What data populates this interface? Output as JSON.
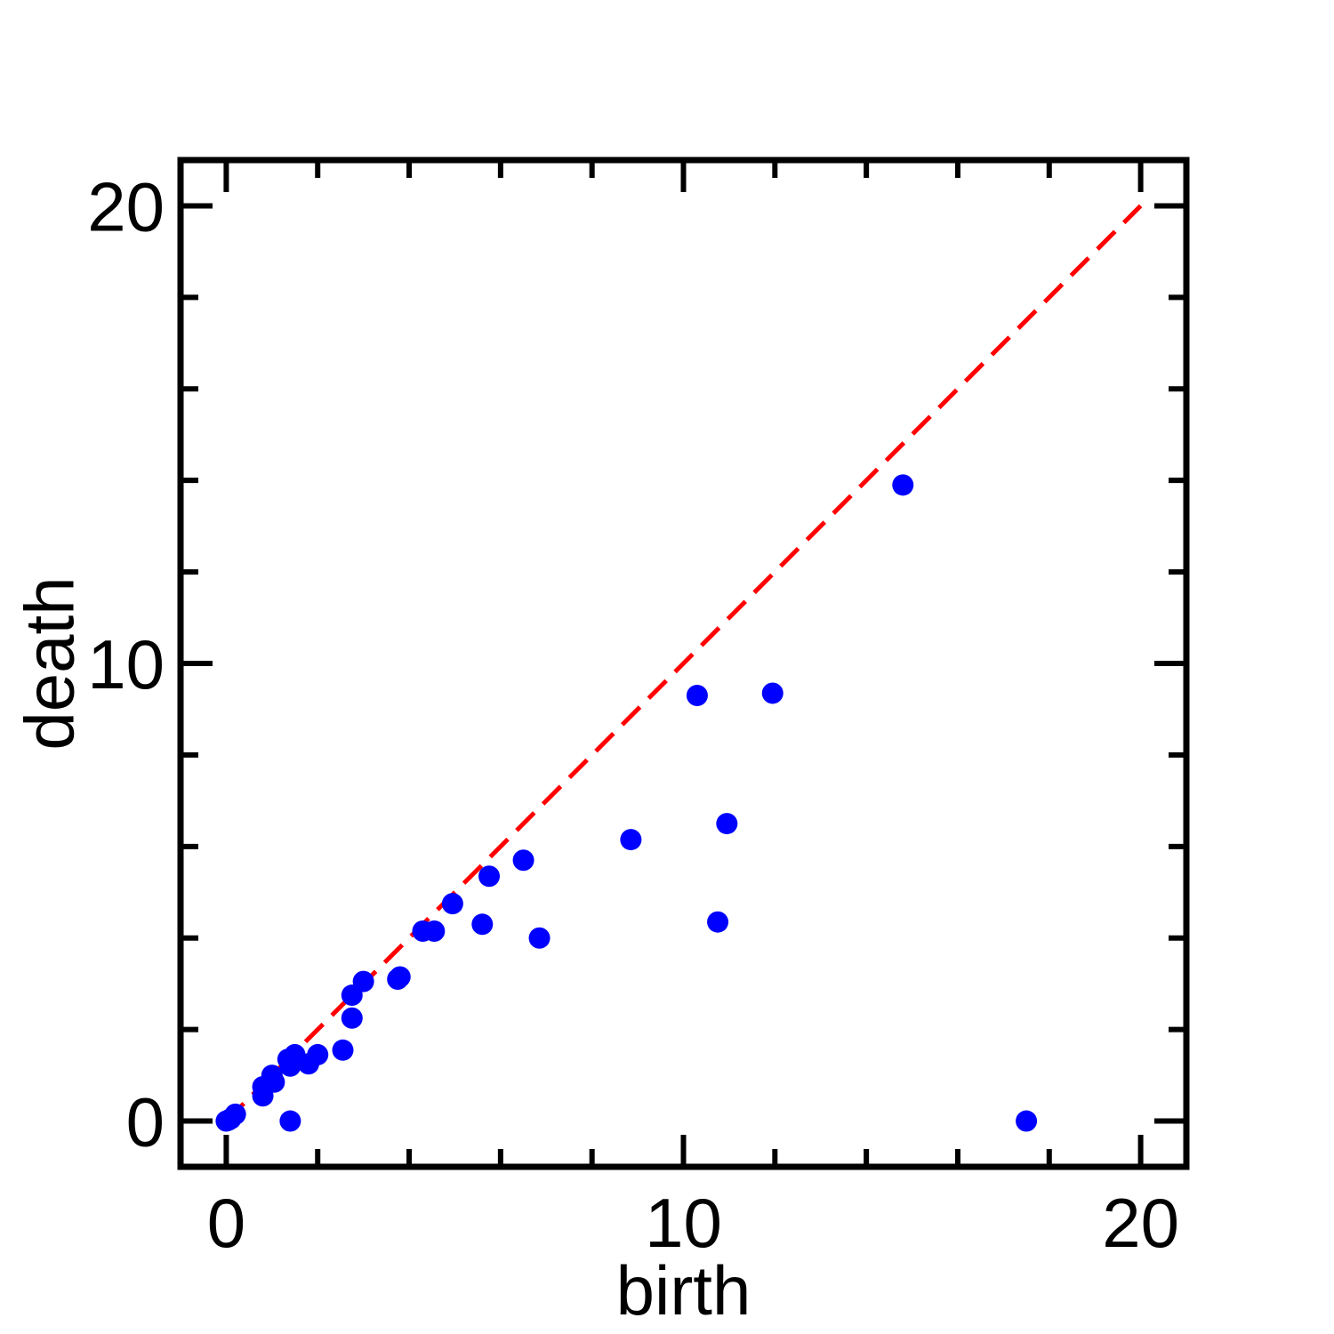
{
  "chart_data": {
    "type": "scatter",
    "title": "",
    "xlabel": "birth",
    "ylabel": "death",
    "xlim": [
      -1,
      21
    ],
    "ylim": [
      -1,
      21
    ],
    "xticks": [
      0,
      10,
      20
    ],
    "yticks": [
      0,
      10,
      20
    ],
    "x_minor_step": 2,
    "y_minor_step": 2,
    "grid": false,
    "point_color": "#0000ff",
    "diagonal": {
      "from": [
        0,
        0
      ],
      "to": [
        20,
        20
      ],
      "color": "#ff0000",
      "style": "dashed"
    },
    "points": [
      {
        "x": 0.0,
        "y": 0.0
      },
      {
        "x": 0.05,
        "y": 0.02
      },
      {
        "x": 0.1,
        "y": 0.05
      },
      {
        "x": 0.2,
        "y": 0.15
      },
      {
        "x": 0.8,
        "y": 0.55
      },
      {
        "x": 0.8,
        "y": 0.75
      },
      {
        "x": 1.0,
        "y": 1.0
      },
      {
        "x": 1.05,
        "y": 0.85
      },
      {
        "x": 1.35,
        "y": 1.35
      },
      {
        "x": 1.4,
        "y": 1.2
      },
      {
        "x": 1.5,
        "y": 1.45
      },
      {
        "x": 1.4,
        "y": 0.0
      },
      {
        "x": 1.8,
        "y": 1.25
      },
      {
        "x": 2.0,
        "y": 1.45
      },
      {
        "x": 2.55,
        "y": 1.55
      },
      {
        "x": 2.75,
        "y": 2.75
      },
      {
        "x": 2.75,
        "y": 2.25
      },
      {
        "x": 3.0,
        "y": 3.05
      },
      {
        "x": 3.75,
        "y": 3.1
      },
      {
        "x": 3.8,
        "y": 3.15
      },
      {
        "x": 4.3,
        "y": 4.15
      },
      {
        "x": 4.55,
        "y": 4.15
      },
      {
        "x": 4.95,
        "y": 4.75
      },
      {
        "x": 5.6,
        "y": 4.3
      },
      {
        "x": 5.75,
        "y": 5.35
      },
      {
        "x": 6.5,
        "y": 5.7
      },
      {
        "x": 6.85,
        "y": 4.0
      },
      {
        "x": 8.85,
        "y": 6.15
      },
      {
        "x": 10.3,
        "y": 9.3
      },
      {
        "x": 10.75,
        "y": 4.35
      },
      {
        "x": 10.95,
        "y": 6.5
      },
      {
        "x": 11.95,
        "y": 9.35
      },
      {
        "x": 14.8,
        "y": 13.9
      },
      {
        "x": 17.5,
        "y": 0.0
      }
    ]
  }
}
